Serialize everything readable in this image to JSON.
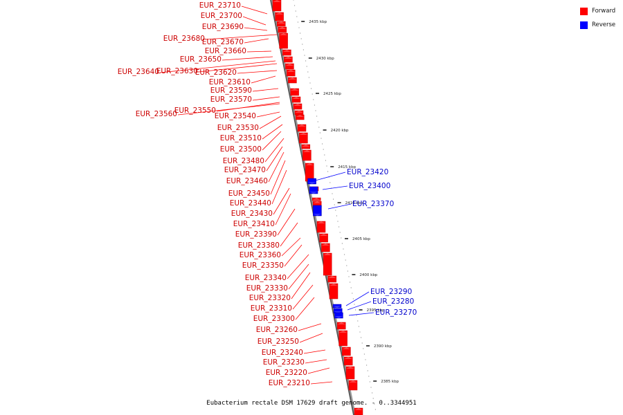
{
  "legend": {
    "forward_label": "Forward",
    "forward_color": "#ff0000",
    "reverse_label": "Reverse",
    "reverse_color": "#0000ff"
  },
  "caption": "Eubacterium rectale DSM 17629 draft genome. - 0..3344951",
  "ticks": [
    "2435 kbp",
    "2430 kbp",
    "2425 kbp",
    "2420 kbp",
    "2415 kbp",
    "2410 kbp",
    "2405 kbp",
    "2400 kbp",
    "2395 kbp",
    "2390 kbp",
    "2385 kbp"
  ],
  "forward_genes": [
    "EUR_23710",
    "EUR_23700",
    "EUR_23690",
    "EUR_23680",
    "EUR_23670",
    "EUR_23660",
    "EUR_23650",
    "EUR_23640",
    "EUR_23630",
    "EUR_23620",
    "EUR_23610",
    "EUR_23590",
    "EUR_23570",
    "EUR_23550",
    "EUR_23560",
    "EUR_23540",
    "EUR_23530",
    "EUR_23510",
    "EUR_23500",
    "EUR_23480",
    "EUR_23470",
    "EUR_23460",
    "EUR_23450",
    "EUR_23440",
    "EUR_23430",
    "EUR_23410",
    "EUR_23390",
    "EUR_23380",
    "EUR_23360",
    "EUR_23350",
    "EUR_23340",
    "EUR_23330",
    "EUR_23320",
    "EUR_23310",
    "EUR_23300",
    "EUR_23260",
    "EUR_23250",
    "EUR_23240",
    "EUR_23230",
    "EUR_23220",
    "EUR_23210"
  ],
  "reverse_genes": [
    "EUR_23420",
    "EUR_23400",
    "EUR_23370",
    "EUR_23290",
    "EUR_23280",
    "EUR_23270"
  ]
}
